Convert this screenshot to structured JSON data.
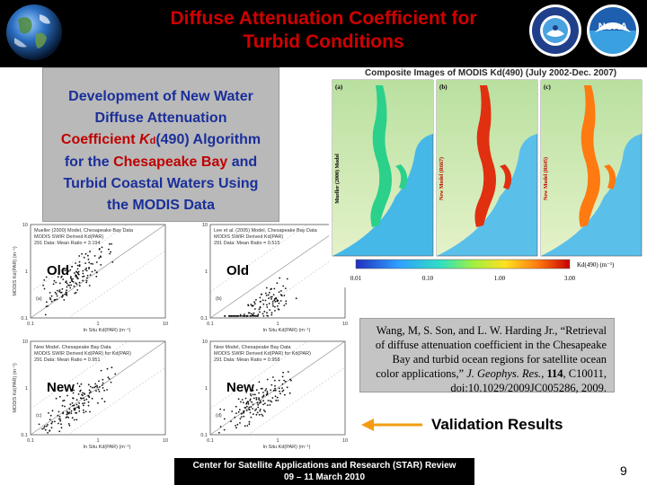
{
  "header": {
    "title_line1": "Diffuse Attenuation Coefficient for",
    "title_line2": "Turbid Conditions",
    "logo_left": "earth-globe",
    "logo_right_1": "noaa-nesdis-seal",
    "logo_right_2": "noaa-logo"
  },
  "description": {
    "line1": "Development of New Water",
    "line2": "Diffuse Attenuation",
    "line3_a": "Coefficient ",
    "line3_k": "K",
    "line3_sub": "d",
    "line3_b": "(490) Algorithm",
    "line4_a": "for the ",
    "line4_red": "Chesapeake Bay",
    "line4_b": " and",
    "line5": "Turbid Coastal Waters Using",
    "line6": "the MODIS Data"
  },
  "plots": {
    "tl": {
      "tag": "Old",
      "note1": "Mueller (2000) Model, Chesapeake Bay Data",
      "note2": "MODIS SWIR Derived Kd(PAR)",
      "note3": "291 Data: Mean Ratio = 3.194",
      "panel": "(a)",
      "ylabel": "MODIS Kd(PAR) (m⁻¹)",
      "xlabel": "In Situ Kd(PAR) (m⁻¹)"
    },
    "tr": {
      "tag": "Old",
      "note1": "Lee et al. (2005) Model, Chesapeake Bay Data",
      "note2": "MODIS SWIR Derived Kd(PAR)",
      "note3": "291 Data: Mean Ratio = 0.515",
      "panel": "(b)",
      "ylabel": "",
      "xlabel": "In Situ Kd(PAR) (m⁻¹)"
    },
    "bl": {
      "tag": "New",
      "note1": "New Model, Chesapeake Bay Data",
      "note2": "MODIS SWIR Derived Kd(PAR) for Kd(PAR)",
      "note3": "291 Data: Mean Ratio = 0.951",
      "panel": "(c)",
      "ylabel": "MODIS Kd(PAR) (m⁻¹)",
      "xlabel": "In Situ Kd(PAR) (m⁻¹)"
    },
    "br": {
      "tag": "New",
      "note1": "New Model, Chesapeake Bay Data",
      "note2": "MODIS SWIR Derived Kd(PAR) for Kd(PAR)",
      "note3": "291 Data: Mean Ratio = 0.958",
      "panel": "(d)",
      "ylabel": "",
      "xlabel": "In Situ Kd(PAR) (m⁻¹)"
    },
    "ticks": [
      "0.1",
      "1",
      "10"
    ]
  },
  "composite": {
    "title": "Composite Images of MODIS Kd(490) (July 2002-Dec. 2007)",
    "panel_a": "(a)",
    "panel_b": "(b)",
    "panel_c": "(c)",
    "model_a": "Mueller (2000) Model",
    "model_b": "New Model (R667)",
    "model_c": "New Model (R645)",
    "colorbar_ticks": [
      "0.01",
      "0.10",
      "1.00",
      "3.00"
    ],
    "colorbar_label": "Kd(490) (m⁻¹)"
  },
  "citation": {
    "part1": "Wang, M, S. Son, and L. W. Harding Jr., “Retrieval of diffuse attenuation coefficient in the Chesapeake Bay and turbid ocean regions for satellite ocean color applications,” ",
    "journal": "J. Geophys. Res.",
    "part2": ", ",
    "volume": "114",
    "part3": ", C10011, doi:10.1029/2009JC005286, 2009."
  },
  "validation": {
    "label": "Validation Results",
    "arrow_color": "#f39c12"
  },
  "footer": {
    "line1": "Center for Satellite Applications and Research (STAR) Review",
    "line2": "09 – 11 March 2010",
    "page": "9"
  },
  "colors": {
    "title": "#d00000",
    "description_text": "#1a2f9a",
    "description_highlight": "#c00000",
    "description_bg": "#b9b9b9",
    "citation_bg": "#c4c4c4"
  }
}
